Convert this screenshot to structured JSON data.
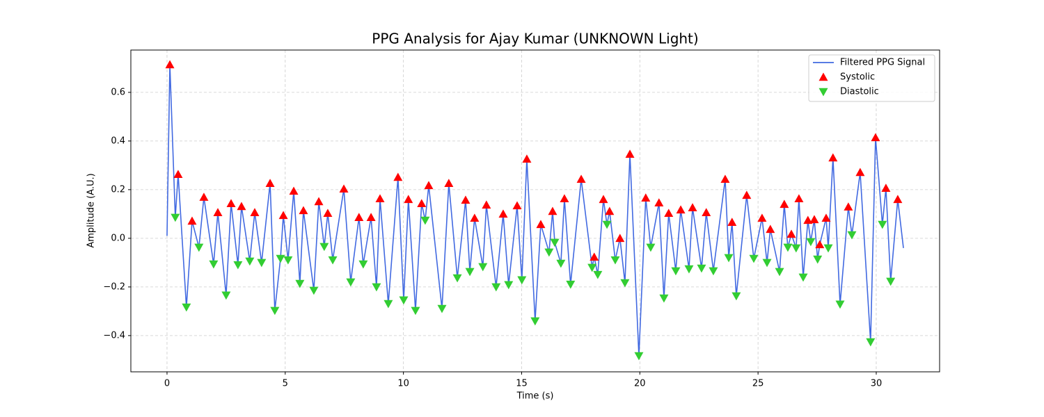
{
  "chart_data": {
    "type": "line",
    "title": "PPG Analysis for Ajay Kumar (UNKNOWN Light)",
    "x_label": "Time (s)",
    "y_label": "Amplitude (A.U.)",
    "xlim": [
      -1.53,
      32.68
    ],
    "ylim": [
      -0.549,
      0.774
    ],
    "xticks": [
      0,
      5,
      10,
      15,
      20,
      25,
      30
    ],
    "yticks": [
      {
        "value": -0.4,
        "label": "−0.4"
      },
      {
        "value": -0.2,
        "label": "−0.2"
      },
      {
        "value": 0,
        "label": "0.0"
      },
      0.2,
      0.4,
      0.6
    ],
    "grid": true,
    "legend": "upper right",
    "series": [
      {
        "name": "Filtered PPG Signal",
        "color": "#4169e1",
        "type": "line",
        "x": [
          0.0,
          0.12,
          0.35,
          0.47,
          0.82,
          1.06,
          1.35,
          1.56,
          1.97,
          2.15,
          2.5,
          2.71,
          3.0,
          3.15,
          3.5,
          3.71,
          4.0,
          4.36,
          4.56,
          4.8,
          4.92,
          5.12,
          5.36,
          5.62,
          5.77,
          6.21,
          6.42,
          6.65,
          6.8,
          7.01,
          7.48,
          7.77,
          8.12,
          8.3,
          8.63,
          8.86,
          9.01,
          9.36,
          9.77,
          10.01,
          10.21,
          10.51,
          10.77,
          10.92,
          11.07,
          11.63,
          11.92,
          12.28,
          12.63,
          12.81,
          13.01,
          13.36,
          13.51,
          13.92,
          14.22,
          14.45,
          14.81,
          15.01,
          15.22,
          15.57,
          15.81,
          16.16,
          16.31,
          16.4,
          16.66,
          16.81,
          17.07,
          17.52,
          17.98,
          18.07,
          18.22,
          18.46,
          18.61,
          18.72,
          18.96,
          19.16,
          19.37,
          19.58,
          19.96,
          20.25,
          20.46,
          20.81,
          21.02,
          21.22,
          21.52,
          21.73,
          22.08,
          22.23,
          22.61,
          22.81,
          23.11,
          23.61,
          23.76,
          23.9,
          24.08,
          24.52,
          24.82,
          25.17,
          25.38,
          25.52,
          25.91,
          26.11,
          26.26,
          26.41,
          26.61,
          26.73,
          26.91,
          27.11,
          27.23,
          27.38,
          27.52,
          27.61,
          27.88,
          27.97,
          28.17,
          28.47,
          28.82,
          28.97,
          29.32,
          29.76,
          29.97,
          30.26,
          30.41,
          30.61,
          30.91,
          31.15
        ],
        "values": [
          0.01,
          0.714,
          0.086,
          0.263,
          -0.283,
          0.071,
          -0.037,
          0.169,
          -0.106,
          0.106,
          -0.234,
          0.143,
          -0.109,
          0.131,
          -0.094,
          0.106,
          -0.1,
          0.226,
          -0.297,
          -0.083,
          0.094,
          -0.089,
          0.194,
          -0.186,
          0.114,
          -0.214,
          0.151,
          -0.034,
          0.103,
          -0.089,
          0.203,
          -0.18,
          0.086,
          -0.106,
          0.086,
          -0.2,
          0.163,
          -0.269,
          0.251,
          -0.254,
          0.16,
          -0.297,
          0.143,
          0.074,
          0.217,
          -0.289,
          0.226,
          -0.163,
          0.157,
          -0.137,
          0.083,
          -0.117,
          0.137,
          -0.2,
          0.1,
          -0.191,
          0.134,
          -0.171,
          0.326,
          -0.34,
          0.057,
          -0.057,
          0.111,
          -0.017,
          -0.103,
          0.163,
          -0.189,
          0.243,
          -0.12,
          -0.077,
          -0.149,
          0.16,
          0.057,
          0.111,
          -0.089,
          0.0,
          -0.183,
          0.346,
          -0.483,
          0.166,
          -0.037,
          0.146,
          -0.246,
          0.103,
          -0.134,
          0.117,
          -0.126,
          0.126,
          -0.123,
          0.106,
          -0.134,
          0.243,
          -0.08,
          0.066,
          -0.237,
          0.177,
          -0.083,
          0.083,
          -0.1,
          0.037,
          -0.137,
          0.14,
          -0.037,
          0.017,
          -0.04,
          0.163,
          -0.16,
          0.074,
          -0.014,
          0.077,
          -0.086,
          -0.026,
          0.083,
          -0.04,
          0.331,
          -0.271,
          0.129,
          0.014,
          0.271,
          -0.426,
          0.414,
          0.057,
          0.206,
          -0.177,
          0.16,
          -0.04
        ]
      },
      {
        "name": "Systolic",
        "color": "#ff0000",
        "type": "scatter",
        "marker": "triangle-up",
        "x": [
          0.12,
          0.47,
          1.06,
          1.56,
          2.15,
          2.71,
          3.15,
          3.71,
          4.36,
          4.92,
          5.36,
          5.77,
          6.42,
          6.8,
          7.48,
          8.12,
          8.63,
          9.01,
          9.77,
          10.21,
          10.77,
          11.07,
          11.92,
          12.63,
          13.01,
          13.51,
          14.22,
          14.81,
          15.22,
          15.81,
          16.31,
          16.81,
          17.52,
          18.07,
          18.46,
          18.72,
          19.16,
          19.58,
          20.25,
          20.81,
          21.22,
          21.73,
          22.23,
          22.81,
          23.61,
          23.9,
          24.52,
          25.17,
          25.52,
          26.11,
          26.41,
          26.73,
          27.11,
          27.38,
          27.61,
          27.88,
          28.17,
          28.82,
          29.32,
          29.97,
          30.41,
          30.91
        ],
        "values": [
          0.714,
          0.263,
          0.071,
          0.169,
          0.106,
          0.143,
          0.131,
          0.106,
          0.226,
          0.094,
          0.194,
          0.114,
          0.151,
          0.103,
          0.203,
          0.086,
          0.086,
          0.163,
          0.251,
          0.16,
          0.143,
          0.217,
          0.226,
          0.157,
          0.083,
          0.137,
          0.1,
          0.134,
          0.326,
          0.057,
          0.111,
          0.163,
          0.243,
          -0.077,
          0.16,
          0.111,
          0.0,
          0.346,
          0.166,
          0.146,
          0.103,
          0.117,
          0.126,
          0.106,
          0.243,
          0.066,
          0.177,
          0.083,
          0.037,
          0.14,
          0.017,
          0.163,
          0.074,
          0.077,
          -0.026,
          0.083,
          0.331,
          0.129,
          0.271,
          0.414,
          0.206,
          0.16
        ]
      },
      {
        "name": "Diastolic",
        "color": "#32cd32",
        "type": "scatter",
        "marker": "triangle-down",
        "x": [
          0.35,
          0.82,
          1.35,
          1.97,
          2.5,
          3.0,
          3.5,
          4.0,
          4.56,
          4.8,
          5.12,
          5.62,
          6.21,
          6.65,
          7.01,
          7.77,
          8.3,
          8.86,
          9.36,
          10.01,
          10.51,
          10.92,
          11.63,
          12.28,
          12.81,
          13.36,
          13.92,
          14.45,
          15.01,
          15.57,
          16.16,
          16.4,
          16.66,
          17.07,
          17.98,
          18.22,
          18.61,
          18.96,
          19.37,
          19.96,
          20.46,
          21.02,
          21.52,
          22.08,
          22.61,
          23.11,
          23.76,
          24.08,
          24.82,
          25.38,
          25.91,
          26.26,
          26.61,
          26.91,
          27.23,
          27.52,
          27.97,
          28.47,
          28.97,
          29.76,
          30.26,
          30.61
        ],
        "values": [
          0.086,
          -0.283,
          -0.037,
          -0.106,
          -0.234,
          -0.109,
          -0.094,
          -0.1,
          -0.297,
          -0.083,
          -0.089,
          -0.186,
          -0.214,
          -0.034,
          -0.089,
          -0.18,
          -0.106,
          -0.2,
          -0.269,
          -0.254,
          -0.297,
          0.074,
          -0.289,
          -0.163,
          -0.137,
          -0.117,
          -0.2,
          -0.191,
          -0.171,
          -0.34,
          -0.057,
          -0.017,
          -0.103,
          -0.189,
          -0.12,
          -0.149,
          0.057,
          -0.089,
          -0.183,
          -0.483,
          -0.037,
          -0.246,
          -0.134,
          -0.126,
          -0.123,
          -0.134,
          -0.08,
          -0.237,
          -0.083,
          -0.1,
          -0.137,
          -0.037,
          -0.04,
          -0.16,
          -0.014,
          -0.086,
          -0.04,
          -0.271,
          0.014,
          -0.426,
          0.057,
          -0.177
        ]
      }
    ]
  }
}
